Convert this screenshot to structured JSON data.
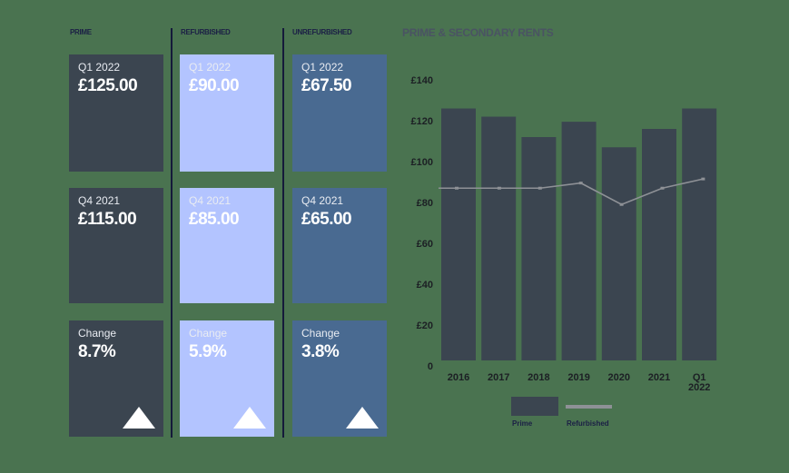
{
  "columns": [
    {
      "label": "PRIME",
      "cards": [
        {
          "period": "Q1 2022",
          "value": "£125.00"
        },
        {
          "period": "Q4 2021",
          "value": "£115.00"
        },
        {
          "period": "Change",
          "value": "8.7%",
          "trend": "up-arrow-icon"
        }
      ]
    },
    {
      "label": "REFURBISHED",
      "cards": [
        {
          "period": "Q1 2022",
          "value": "£90.00"
        },
        {
          "period": "Q4 2021",
          "value": "£85.00"
        },
        {
          "period": "Change",
          "value": "5.9%",
          "trend": "up-arrow-icon"
        }
      ]
    },
    {
      "label": "UNREFURBISHED",
      "cards": [
        {
          "period": "Q1 2022",
          "value": "£67.50"
        },
        {
          "period": "Q4 2021",
          "value": "£65.00"
        },
        {
          "period": "Change",
          "value": "3.8%",
          "trend": "up-arrow-icon"
        }
      ]
    }
  ],
  "colors": {
    "prime": "#3b4550",
    "refurbished": "#b3c4ff",
    "unrefurbished": "#496a91",
    "line": "#8e9196",
    "divider": "#151a3a"
  },
  "chart_data": {
    "type": "bar",
    "title": "PRIME & SECONDARY RENTS",
    "categories": [
      "2016",
      "2017",
      "2018",
      "2019",
      "2020",
      "2021",
      "Q1 2022"
    ],
    "series": [
      {
        "name": "Prime",
        "type": "bar",
        "values": [
          126,
          122,
          112,
          119.5,
          107,
          116,
          126
        ]
      },
      {
        "name": "Refurbished",
        "type": "line",
        "values": [
          87,
          87,
          87,
          89.5,
          79,
          87,
          91.5
        ]
      }
    ],
    "xlabel": "",
    "ylabel": "",
    "yticks": [
      "0",
      "£20",
      "£40",
      "£60",
      "£80",
      "£100",
      "£120",
      "£140"
    ],
    "ylim": [
      0,
      140
    ],
    "grid": false,
    "legend_position": "bottom"
  }
}
